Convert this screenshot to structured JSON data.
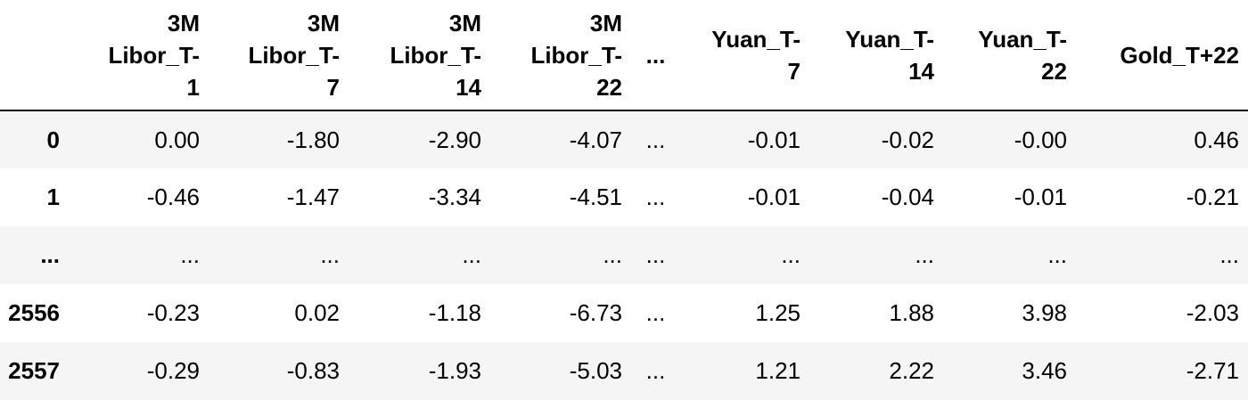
{
  "table": {
    "columns": [
      "",
      "3M Libor_T-1",
      "3M Libor_T-7",
      "3M Libor_T-14",
      "3M Libor_T-22",
      "...",
      "Yuan_T-7",
      "Yuan_T-14",
      "Yuan_T-22",
      "Gold_T+22"
    ],
    "header_lines": [
      [
        ""
      ],
      [
        "3M",
        "Libor_T-",
        "1"
      ],
      [
        "3M",
        "Libor_T-",
        "7"
      ],
      [
        "3M",
        "Libor_T-",
        "14"
      ],
      [
        "3M",
        "Libor_T-",
        "22"
      ],
      [
        "..."
      ],
      [
        "Yuan_T-",
        "7"
      ],
      [
        "Yuan_T-",
        "14"
      ],
      [
        "Yuan_T-",
        "22"
      ],
      [
        "Gold_T+22"
      ]
    ],
    "rows": [
      {
        "index": "0",
        "values": [
          "0.00",
          "-1.80",
          "-2.90",
          "-4.07",
          "...",
          "-0.01",
          "-0.02",
          "-0.00",
          "0.46"
        ]
      },
      {
        "index": "1",
        "values": [
          "-0.46",
          "-1.47",
          "-3.34",
          "-4.51",
          "...",
          "-0.01",
          "-0.04",
          "-0.01",
          "-0.21"
        ]
      },
      {
        "index": "...",
        "values": [
          "...",
          "...",
          "...",
          "...",
          "...",
          "...",
          "...",
          "...",
          "..."
        ]
      },
      {
        "index": "2556",
        "values": [
          "-0.23",
          "0.02",
          "-1.18",
          "-6.73",
          "...",
          "1.25",
          "1.88",
          "3.98",
          "-2.03"
        ]
      },
      {
        "index": "2557",
        "values": [
          "-0.29",
          "-0.83",
          "-1.93",
          "-5.03",
          "...",
          "1.21",
          "2.22",
          "3.46",
          "-2.71"
        ]
      }
    ]
  }
}
